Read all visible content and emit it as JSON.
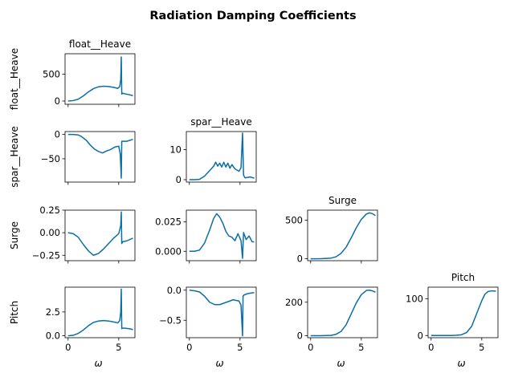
{
  "title": "Radiation Damping Coefficients",
  "line_color": "#0a6ea7",
  "chart_data": [
    {
      "type": "line",
      "row": 0,
      "col": 0,
      "title": "float__Heave",
      "ylabel": "float__Heave",
      "xlabel": "",
      "xlim": [
        -0.3,
        6.6
      ],
      "ylim": [
        -60,
        880
      ],
      "xticks": [
        0,
        5
      ],
      "xtick_labels": [],
      "yticks": [
        0,
        500
      ],
      "ytick_labels": [
        "0",
        "500"
      ],
      "x": [
        0,
        0.5,
        1,
        1.5,
        2,
        2.5,
        3,
        3.5,
        4,
        4.5,
        4.9,
        5.1,
        5.2,
        5.25,
        5.3,
        5.4,
        5.6,
        6,
        6.4
      ],
      "y": [
        0,
        8,
        35,
        95,
        170,
        230,
        265,
        275,
        270,
        255,
        235,
        270,
        400,
        820,
        130,
        145,
        135,
        120,
        100
      ]
    },
    {
      "type": "line",
      "row": 1,
      "col": 0,
      "title": "",
      "ylabel": "spar__Heave",
      "xlabel": "",
      "xlim": [
        -0.3,
        6.6
      ],
      "ylim": [
        -98,
        6
      ],
      "xticks": [
        0,
        5
      ],
      "xtick_labels": [],
      "yticks": [
        0,
        -50
      ],
      "ytick_labels": [
        "0",
        "−50"
      ],
      "x": [
        0,
        0.5,
        1,
        1.3,
        1.8,
        2.2,
        2.6,
        3,
        3.4,
        3.8,
        4.2,
        4.6,
        5,
        5.15,
        5.25,
        5.3,
        5.4,
        5.8,
        6.4
      ],
      "y": [
        0,
        0,
        -1,
        -4,
        -12,
        -22,
        -30,
        -35,
        -38,
        -34,
        -31,
        -26,
        -24,
        -40,
        -90,
        -14,
        -14,
        -14,
        -10
      ]
    },
    {
      "type": "line",
      "row": 1,
      "col": 1,
      "title": "spar__Heave",
      "ylabel": "",
      "xlabel": "",
      "xlim": [
        -0.3,
        6.6
      ],
      "ylim": [
        -0.8,
        16
      ],
      "xticks": [
        0,
        5
      ],
      "xtick_labels": [],
      "yticks": [
        0,
        10
      ],
      "ytick_labels": [
        "0",
        "10"
      ],
      "x": [
        0,
        0.5,
        1,
        1.5,
        2,
        2.4,
        2.6,
        2.8,
        3,
        3.2,
        3.4,
        3.6,
        3.8,
        4,
        4.2,
        4.5,
        4.9,
        5.1,
        5.25,
        5.35,
        5.5,
        6,
        6.4
      ],
      "y": [
        0,
        0,
        0.1,
        1.2,
        3,
        4.5,
        5.8,
        4.5,
        5.5,
        4.2,
        5.8,
        4.2,
        5.5,
        3.8,
        5,
        3.6,
        2.8,
        4,
        15.5,
        1.5,
        0.6,
        0.9,
        0.5
      ]
    },
    {
      "type": "line",
      "row": 2,
      "col": 0,
      "title": "",
      "ylabel": "Surge",
      "xlabel": "",
      "xlim": [
        -0.3,
        6.6
      ],
      "ylim": [
        -0.31,
        0.25
      ],
      "xticks": [
        0,
        5
      ],
      "xtick_labels": [],
      "yticks": [
        0.25,
        0,
        -0.25
      ],
      "ytick_labels": [
        "0.25",
        "0.00",
        "−0.25"
      ],
      "x": [
        0,
        0.5,
        1,
        1.5,
        2,
        2.5,
        3,
        3.5,
        4,
        4.5,
        5,
        5.2,
        5.25,
        5.3,
        5.4,
        5.8,
        6.4
      ],
      "y": [
        0,
        -0.01,
        -0.05,
        -0.13,
        -0.2,
        -0.25,
        -0.23,
        -0.18,
        -0.12,
        -0.06,
        -0.01,
        0.08,
        0.23,
        -0.12,
        -0.1,
        -0.09,
        -0.06
      ]
    },
    {
      "type": "line",
      "row": 2,
      "col": 1,
      "title": "",
      "ylabel": "",
      "xlabel": "",
      "xlim": [
        -0.3,
        6.6
      ],
      "ylim": [
        -0.008,
        0.035
      ],
      "xticks": [
        0,
        5
      ],
      "xtick_labels": [],
      "yticks": [
        0.025,
        0
      ],
      "ytick_labels": [
        "0.025",
        "0.000"
      ],
      "x": [
        0,
        0.5,
        1,
        1.5,
        2,
        2.4,
        2.7,
        3,
        3.3,
        3.6,
        3.9,
        4.2,
        4.5,
        4.8,
        5.1,
        5.25,
        5.35,
        5.6,
        5.9,
        6.2,
        6.4
      ],
      "y": [
        0,
        0,
        0.001,
        0.007,
        0.018,
        0.028,
        0.032,
        0.029,
        0.024,
        0.017,
        0.013,
        0.012,
        0.009,
        0.015,
        0.009,
        -0.006,
        0.016,
        0.01,
        0.013,
        0.008,
        0.008
      ]
    },
    {
      "type": "line",
      "row": 2,
      "col": 2,
      "title": "Surge",
      "ylabel": "",
      "xlabel": "",
      "xlim": [
        -0.3,
        6.6
      ],
      "ylim": [
        -25,
        630
      ],
      "xticks": [
        0,
        5
      ],
      "xtick_labels": [],
      "yticks": [
        0,
        500
      ],
      "ytick_labels": [
        "0",
        "500"
      ],
      "x": [
        0,
        1,
        2,
        2.5,
        3,
        3.5,
        4,
        4.5,
        5,
        5.5,
        5.8,
        6.1,
        6.4
      ],
      "y": [
        0,
        1,
        8,
        25,
        70,
        150,
        270,
        400,
        510,
        580,
        595,
        585,
        560
      ]
    },
    {
      "type": "line",
      "row": 3,
      "col": 0,
      "title": "",
      "ylabel": "Pitch",
      "xlabel": "ω",
      "xlim": [
        -0.3,
        6.6
      ],
      "ylim": [
        -0.2,
        5.1
      ],
      "xticks": [
        0,
        5
      ],
      "xtick_labels": [
        "0",
        "5"
      ],
      "yticks": [
        0,
        2.5
      ],
      "ytick_labels": [
        "0.0",
        "2.5"
      ],
      "x": [
        0,
        0.5,
        1,
        1.5,
        2,
        2.5,
        3,
        3.5,
        4,
        4.5,
        4.9,
        5.1,
        5.2,
        5.25,
        5.3,
        5.4,
        5.6,
        6,
        6.4
      ],
      "y": [
        0,
        0.05,
        0.25,
        0.6,
        1.05,
        1.4,
        1.55,
        1.6,
        1.55,
        1.45,
        1.35,
        1.6,
        2.5,
        4.9,
        0.75,
        0.8,
        0.8,
        0.75,
        0.65
      ]
    },
    {
      "type": "line",
      "row": 3,
      "col": 1,
      "title": "",
      "ylabel": "",
      "xlabel": "ω",
      "xlim": [
        -0.3,
        6.6
      ],
      "ylim": [
        -0.79,
        0.05
      ],
      "xticks": [
        0,
        5
      ],
      "xtick_labels": [
        "0",
        "5"
      ],
      "yticks": [
        0,
        -0.5
      ],
      "ytick_labels": [
        "0.0",
        "−0.5"
      ],
      "x": [
        0,
        0.5,
        1,
        1.5,
        2,
        2.5,
        3,
        3.5,
        4,
        4.3,
        4.6,
        4.9,
        5.1,
        5.25,
        5.3,
        5.4,
        5.7,
        6,
        6.4
      ],
      "y": [
        0,
        -0.01,
        -0.03,
        -0.1,
        -0.2,
        -0.24,
        -0.24,
        -0.21,
        -0.18,
        -0.16,
        -0.17,
        -0.18,
        -0.25,
        -0.76,
        -0.1,
        -0.08,
        -0.06,
        -0.05,
        -0.04
      ]
    },
    {
      "type": "line",
      "row": 3,
      "col": 2,
      "title": "",
      "ylabel": "",
      "xlabel": "ω",
      "xlim": [
        -0.3,
        6.6
      ],
      "ylim": [
        -12,
        290
      ],
      "xticks": [
        0,
        5
      ],
      "xtick_labels": [
        "0",
        "5"
      ],
      "yticks": [
        0,
        200
      ],
      "ytick_labels": [
        "0",
        "200"
      ],
      "x": [
        0,
        1,
        2,
        2.5,
        3,
        3.5,
        4,
        4.5,
        5,
        5.5,
        5.8,
        6.1,
        6.4
      ],
      "y": [
        0,
        0,
        2,
        8,
        25,
        65,
        130,
        195,
        245,
        270,
        272,
        268,
        260
      ]
    },
    {
      "type": "line",
      "row": 3,
      "col": 3,
      "title": "Pitch",
      "ylabel": "",
      "xlabel": "ω",
      "xlim": [
        -0.3,
        6.6
      ],
      "ylim": [
        -6,
        132
      ],
      "xticks": [
        0,
        5
      ],
      "xtick_labels": [
        "0",
        "5"
      ],
      "yticks": [
        0,
        100
      ],
      "ytick_labels": [
        "0",
        "100"
      ],
      "x": [
        0,
        1,
        2,
        2.5,
        3,
        3.5,
        4,
        4.5,
        5,
        5.3,
        5.6,
        6,
        6.4
      ],
      "y": [
        0,
        0,
        0,
        0.5,
        2,
        8,
        25,
        60,
        95,
        112,
        120,
        122,
        121
      ]
    }
  ]
}
